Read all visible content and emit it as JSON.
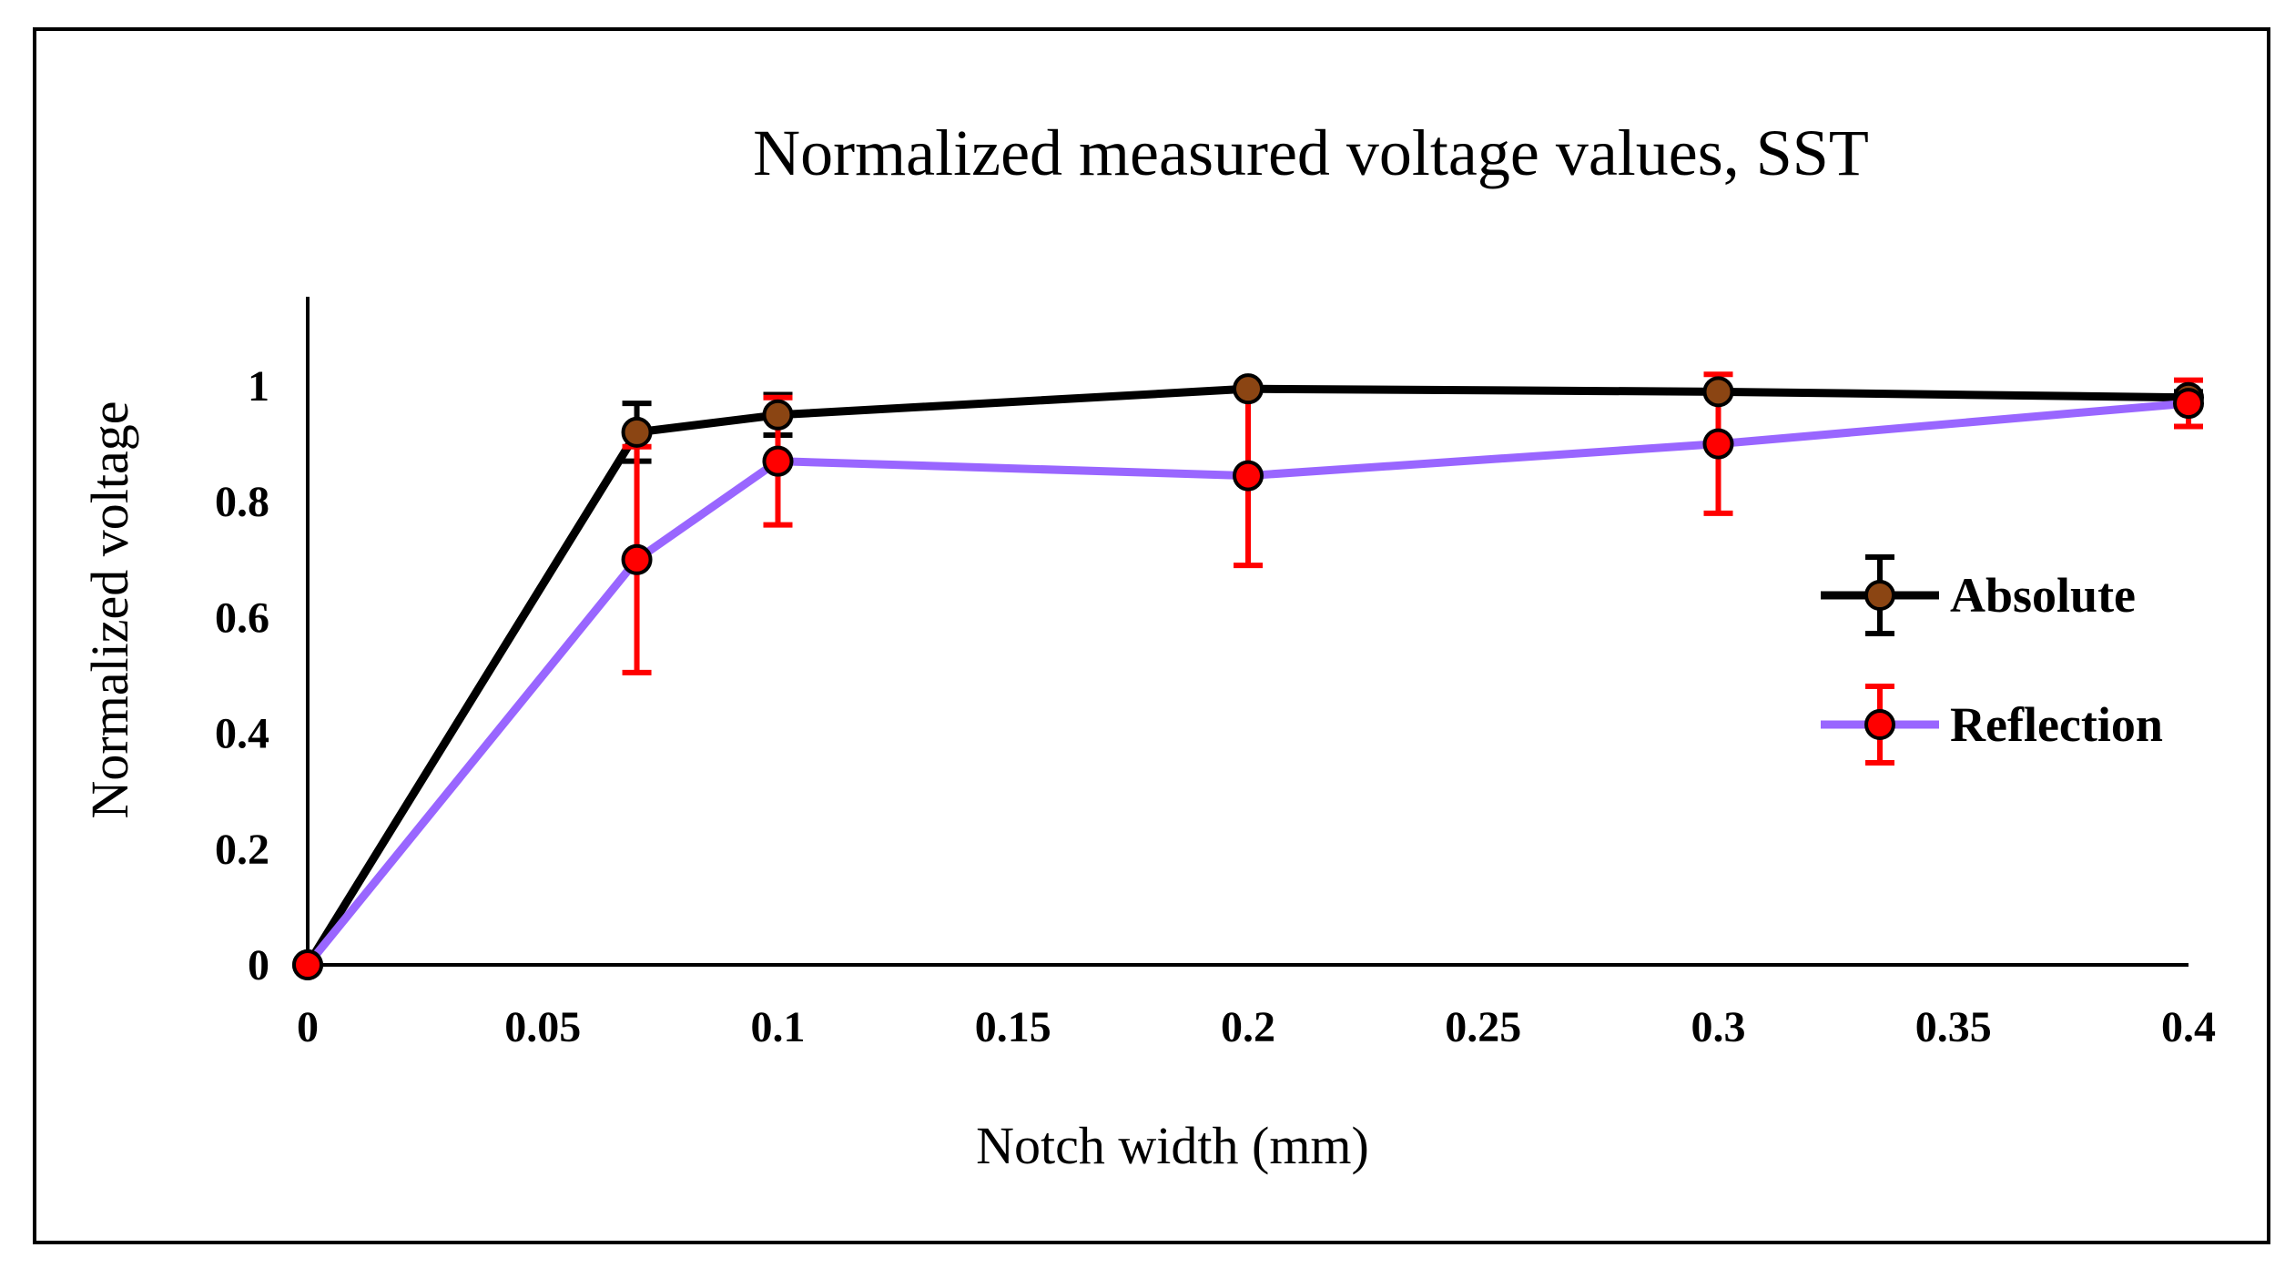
{
  "chart_data": {
    "type": "line",
    "title": "Normalized measured voltage values, SST",
    "xlabel": "Notch width (mm)",
    "ylabel": "Normalized voltage",
    "xlim": [
      0,
      0.4
    ],
    "ylim": [
      0,
      1.15
    ],
    "x_ticks": [
      0,
      0.05,
      0.1,
      0.15,
      0.2,
      0.25,
      0.3,
      0.35,
      0.4
    ],
    "x_tick_labels": [
      "0",
      "0.05",
      "0.1",
      "0.15",
      "0.2",
      "0.25",
      "0.3",
      "0.35",
      "0.4"
    ],
    "y_ticks": [
      0,
      0.2,
      0.4,
      0.6,
      0.8,
      1
    ],
    "y_tick_labels": [
      "0",
      "0.2",
      "0.4",
      "0.6",
      "0.8",
      "1"
    ],
    "grid": false,
    "legend_position": "right",
    "series": [
      {
        "name": "Absolute",
        "line_color": "#000000",
        "marker_color": "#8B4513",
        "errorbar_color": "#000000",
        "x": [
          0,
          0.07,
          0.1,
          0.2,
          0.3,
          0.4
        ],
        "y": [
          0,
          0.92,
          0.95,
          0.995,
          0.99,
          0.98
        ],
        "error": [
          0,
          0.05,
          0.035,
          0,
          0,
          0.01
        ]
      },
      {
        "name": "Reflection",
        "line_color": "#9966FF",
        "marker_color": "#FF0000",
        "errorbar_color": "#FF0000",
        "x": [
          0,
          0.07,
          0.1,
          0.2,
          0.3,
          0.4
        ],
        "y": [
          0,
          0.7,
          0.87,
          0.845,
          0.9,
          0.97
        ],
        "error": [
          0,
          0.195,
          0.11,
          0.155,
          0.12,
          0.04
        ]
      }
    ]
  }
}
